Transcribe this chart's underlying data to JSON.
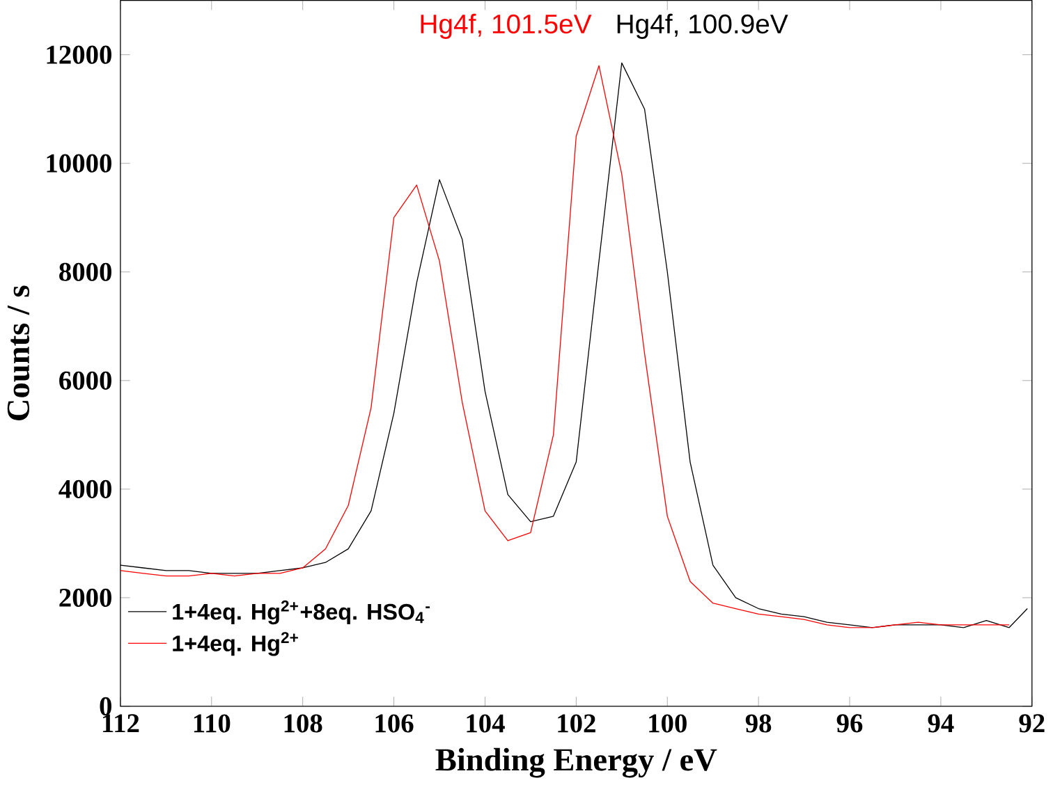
{
  "chart_data": {
    "type": "line",
    "xlabel": "Binding Energy / eV",
    "ylabel": "Counts / s",
    "xlim": [
      112,
      92
    ],
    "ylim": [
      0,
      13000
    ],
    "xticks": [
      112,
      110,
      108,
      106,
      104,
      102,
      100,
      98,
      96,
      94,
      92
    ],
    "yticks": [
      0,
      2000,
      4000,
      6000,
      8000,
      10000,
      12000
    ],
    "grid": false,
    "legend": "bottom left",
    "marker": "none",
    "line_style": "solid",
    "annotations": [
      "Hg4f, 101.5eV",
      "Hg4f, 100.9eV"
    ],
    "series": [
      {
        "name": "1+4eq. Hg$^{2+}$+8eq. HSO$_{4}$$^{-}$",
        "color": "#000000",
        "x": [
          112,
          111.5,
          111,
          110.5,
          110,
          109.5,
          109,
          108.5,
          108,
          107.5,
          107,
          106.5,
          106,
          105.5,
          105,
          104.5,
          104,
          103.5,
          103,
          102.5,
          102,
          101.5,
          101,
          100.5,
          100,
          99.5,
          99,
          98.5,
          98,
          97.5,
          97,
          96.5,
          96,
          95.5,
          95,
          94.5,
          94,
          93.5,
          93,
          92.5,
          92.1
        ],
        "values": [
          2600,
          2550,
          2500,
          2500,
          2450,
          2450,
          2450,
          2500,
          2550,
          2650,
          2900,
          3600,
          5400,
          7800,
          9700,
          8600,
          5800,
          3900,
          3400,
          3500,
          4500,
          8200,
          11850,
          11000,
          8000,
          4500,
          2600,
          2000,
          1800,
          1700,
          1650,
          1550,
          1500,
          1450,
          1500,
          1500,
          1500,
          1450,
          1580,
          1450,
          1800
        ]
      },
      {
        "name": "1+4eq. Hg$^{2+}$",
        "color": "#ff0000",
        "x": [
          112,
          111.5,
          111,
          110.5,
          110,
          109.5,
          109,
          108.5,
          108,
          107.5,
          107,
          106.5,
          106,
          105.5,
          105,
          104.5,
          104,
          103.5,
          103,
          102.5,
          102,
          101.5,
          101,
          100.5,
          100,
          99.5,
          99,
          98.5,
          98,
          97.5,
          97,
          96.5,
          96,
          95.5,
          95,
          94.5,
          94,
          93.5,
          93,
          92.5
        ],
        "values": [
          2500,
          2450,
          2400,
          2400,
          2450,
          2400,
          2450,
          2450,
          2550,
          2900,
          3700,
          5500,
          9000,
          9600,
          8200,
          5600,
          3600,
          3050,
          3200,
          5000,
          10500,
          11800,
          9800,
          6500,
          3500,
          2300,
          1900,
          1800,
          1700,
          1650,
          1600,
          1500,
          1450,
          1450,
          1500,
          1550,
          1500,
          1500,
          1500,
          1500
        ]
      }
    ]
  }
}
